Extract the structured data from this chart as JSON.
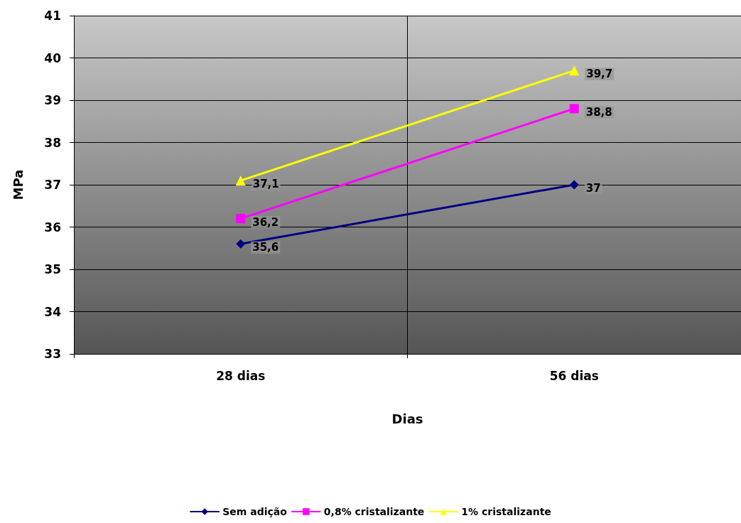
{
  "chart_data": {
    "type": "line",
    "categories": [
      "28 dias",
      "56 dias"
    ],
    "series": [
      {
        "name": "Sem adição",
        "color": "#000080",
        "marker": "diamond",
        "values": [
          35.6,
          37
        ],
        "value_labels": [
          "35,6",
          "37"
        ]
      },
      {
        "name": "0,8% cristalizante",
        "color": "#ff00ff",
        "marker": "square",
        "values": [
          36.2,
          38.8
        ],
        "value_labels": [
          "36,2",
          "38,8"
        ]
      },
      {
        "name": "1% cristalizante",
        "color": "#ffff00",
        "marker": "triangle",
        "values": [
          37.1,
          39.7
        ],
        "value_labels": [
          "37,1",
          "39,7"
        ]
      }
    ],
    "xlabel": "Dias",
    "ylabel": "MPa",
    "ylim": [
      33,
      41
    ],
    "yticks": [
      33,
      34,
      35,
      36,
      37,
      38,
      39,
      40,
      41
    ],
    "grid": true,
    "legend": "bottom",
    "line_style": "solid"
  }
}
